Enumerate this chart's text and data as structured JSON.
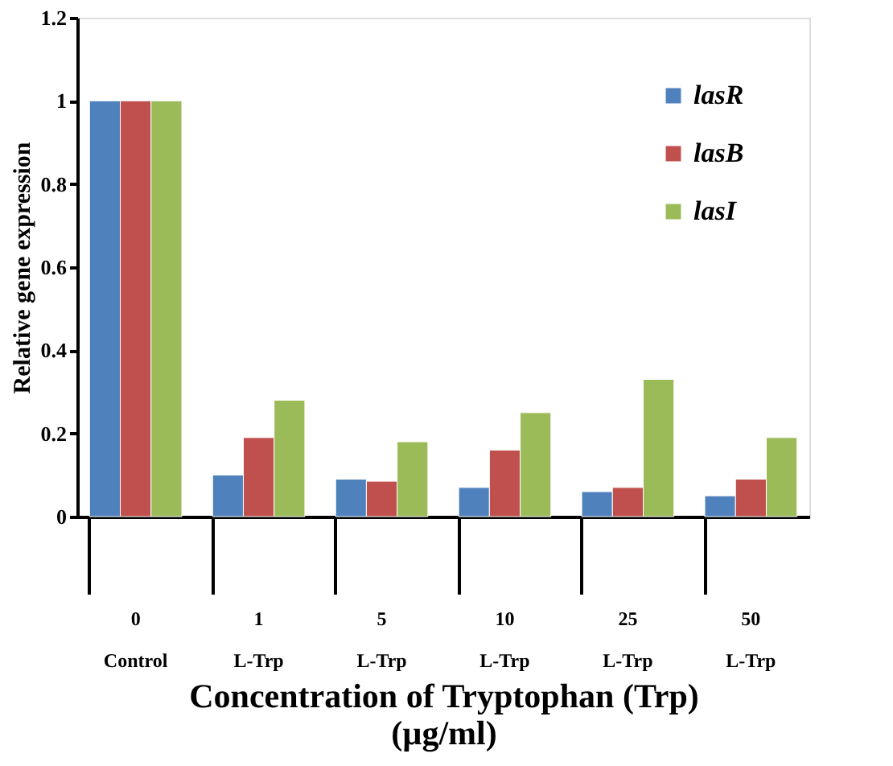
{
  "chart_data": {
    "type": "bar",
    "xlabel": "Concentration of Tryptophan (Trp)\n(µg/ml)",
    "ylabel": "Relative gene expression",
    "categories": [
      "0\nControl",
      "1\nL-Trp",
      "5\nL-Trp",
      "10\nL-Trp",
      "25\nL-Trp",
      "50\nL-Trp"
    ],
    "series": [
      {
        "name": "lasR",
        "color": "#4f81bd",
        "values": [
          1,
          0.1,
          0.09,
          0.07,
          0.06,
          0.05
        ]
      },
      {
        "name": "lasB",
        "color": "#c0504d",
        "values": [
          1,
          0.19,
          0.085,
          0.16,
          0.07,
          0.09
        ]
      },
      {
        "name": "lasI",
        "color": "#9bbb59",
        "values": [
          1,
          0.28,
          0.18,
          0.25,
          0.33,
          0.19
        ]
      }
    ],
    "ylim": [
      0,
      1.2
    ],
    "yticks": [
      0,
      0.2,
      0.4,
      0.6,
      0.8,
      1,
      1.2
    ],
    "grid": false,
    "legend": "top right"
  }
}
